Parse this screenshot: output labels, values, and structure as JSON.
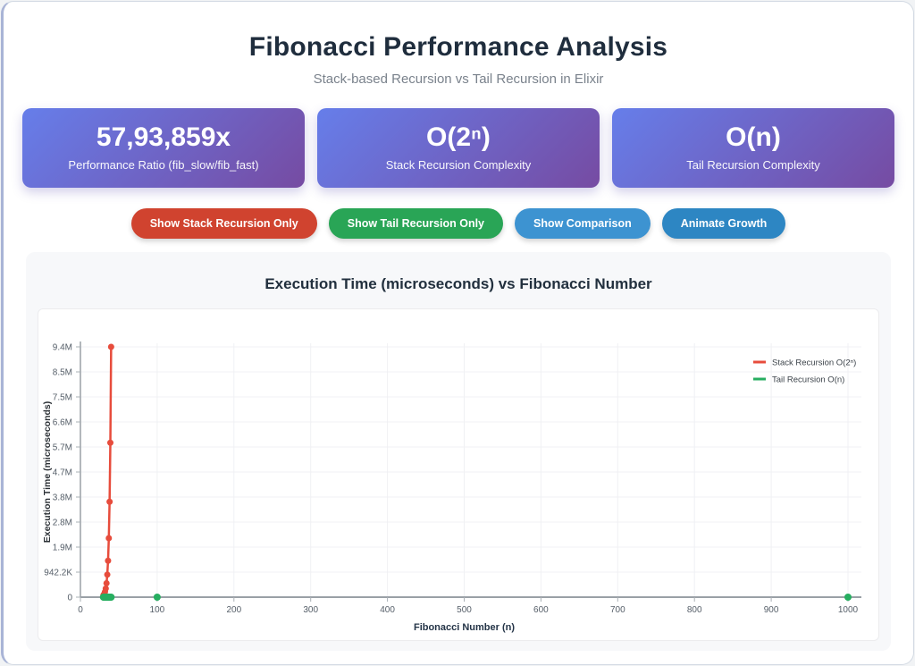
{
  "header": {
    "title": "Fibonacci Performance Analysis",
    "subtitle": "Stack-based Recursion vs Tail Recursion in Elixir"
  },
  "stats": {
    "gradient": [
      "#667eea",
      "#764ba2"
    ],
    "cards": [
      {
        "value": "57,93,859x",
        "label": "Performance Ratio (fib_slow/fib_fast)"
      },
      {
        "value": "O(2ⁿ)",
        "label": "Stack Recursion Complexity"
      },
      {
        "value": "O(n)",
        "label": "Tail Recursion Complexity"
      }
    ]
  },
  "controls": {
    "buttons": [
      {
        "label": "Show Stack Recursion Only",
        "color": "#d0432f"
      },
      {
        "label": "Show Tail Recursion Only",
        "color": "#29a556"
      },
      {
        "label": "Show Comparison",
        "color": "#3d93d1"
      },
      {
        "label": "Animate Growth",
        "color": "#2d86c3"
      }
    ]
  },
  "chart": {
    "title": "Execution Time (microseconds) vs Fibonacci Number"
  },
  "chart_data": {
    "type": "line",
    "title": "Execution Time (microseconds) vs Fibonacci Number",
    "xlabel": "Fibonacci Number (n)",
    "ylabel": "Execution Time (microseconds)",
    "xlim": [
      0,
      1000
    ],
    "ylim": [
      0,
      9422000
    ],
    "grid": true,
    "legend_position": "top-right",
    "x_ticks": [
      0,
      100,
      200,
      300,
      400,
      500,
      600,
      700,
      800,
      900,
      1000
    ],
    "y_ticks": [
      {
        "value": 0,
        "label": "0"
      },
      {
        "value": 942200,
        "label": "942.2K"
      },
      {
        "value": 1884400,
        "label": "1.9M"
      },
      {
        "value": 2826600,
        "label": "2.8M"
      },
      {
        "value": 3768800,
        "label": "3.8M"
      },
      {
        "value": 4711000,
        "label": "4.7M"
      },
      {
        "value": 5653200,
        "label": "5.7M"
      },
      {
        "value": 6595400,
        "label": "6.6M"
      },
      {
        "value": 7537600,
        "label": "7.5M"
      },
      {
        "value": 8479800,
        "label": "8.5M"
      },
      {
        "value": 9422000,
        "label": "9.4M"
      }
    ],
    "series": [
      {
        "name": "Stack Recursion O(2ⁿ)",
        "color": "#e74c3c",
        "x": [
          30,
          31,
          32,
          33,
          34,
          35,
          36,
          37,
          38,
          39,
          40
        ],
        "values": [
          76000,
          124000,
          200000,
          324000,
          524000,
          848000,
          1372000,
          2220000,
          3592000,
          5812000,
          9422000
        ]
      },
      {
        "name": "Tail Recursion O(n)",
        "color": "#27ae60",
        "x": [
          30,
          31,
          32,
          33,
          34,
          35,
          36,
          37,
          38,
          39,
          40,
          100,
          1000
        ],
        "values": [
          1,
          1,
          1,
          1,
          1,
          1,
          2,
          2,
          2,
          2,
          2,
          3,
          16
        ]
      }
    ]
  }
}
